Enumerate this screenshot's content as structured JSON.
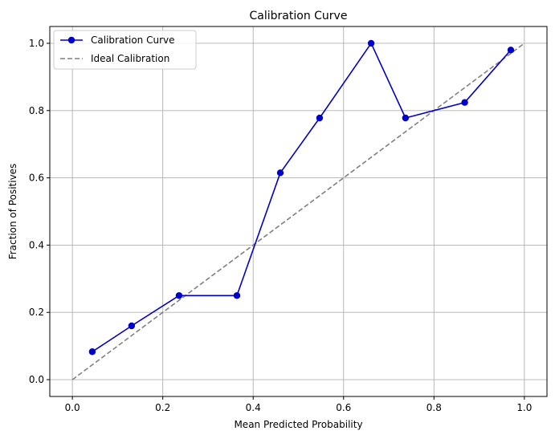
{
  "chart_data": {
    "type": "line",
    "title": "Calibration Curve",
    "xlabel": "Mean Predicted Probability",
    "ylabel": "Fraction of Positives",
    "xlim": [
      -0.05,
      1.05
    ],
    "ylim": [
      -0.05,
      1.05
    ],
    "xticks": [
      0.0,
      0.2,
      0.4,
      0.6,
      0.8,
      1.0
    ],
    "yticks": [
      0.0,
      0.2,
      0.4,
      0.6,
      0.8,
      1.0
    ],
    "xtick_labels": [
      "0.0",
      "0.2",
      "0.4",
      "0.6",
      "0.8",
      "1.0"
    ],
    "ytick_labels": [
      "0.0",
      "0.2",
      "0.4",
      "0.6",
      "0.8",
      "1.0"
    ],
    "grid": true,
    "legend_position": "top-left",
    "series": [
      {
        "name": "Calibration Curve",
        "color": "#0000cc",
        "style": "solid-with-markers",
        "x": [
          0.044,
          0.131,
          0.236,
          0.364,
          0.46,
          0.547,
          0.661,
          0.737,
          0.868,
          0.97
        ],
        "y": [
          0.083,
          0.16,
          0.25,
          0.25,
          0.615,
          0.778,
          1.0,
          0.778,
          0.824,
          0.98
        ]
      },
      {
        "name": "Ideal Calibration",
        "color": "#808080",
        "style": "dashed",
        "x": [
          0.0,
          1.0
        ],
        "y": [
          0.0,
          1.0
        ]
      }
    ]
  }
}
